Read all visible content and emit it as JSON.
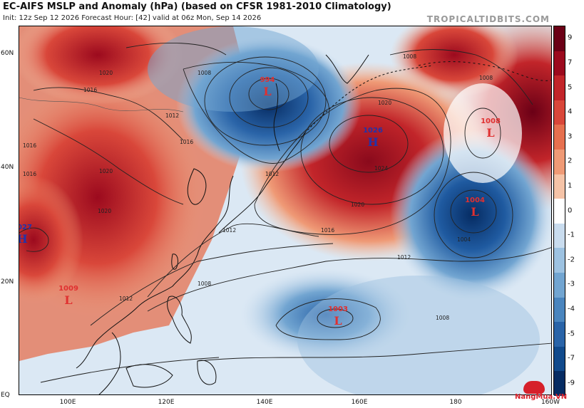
{
  "header": {
    "title": "EC-AIFS MSLP and Anomaly (hPa) (based on CFSR 1981-2010 Climatology)",
    "subtitle": "Init: 12z Sep 12 2026   Forecast Hour: [42]   valid at 06z Mon, Sep 14 2026",
    "brand": "TROPICALTIDBITS.COM"
  },
  "axes": {
    "lat_labels": [
      "60N",
      "40N",
      "20N",
      "EQ"
    ],
    "lon_labels": [
      "100E",
      "120E",
      "140E",
      "160E",
      "180",
      "160W"
    ]
  },
  "colorbar": {
    "labels": [
      "9",
      "7",
      "5",
      "4",
      "3",
      "2",
      "1",
      "0",
      "-1",
      "-2",
      "-3",
      "-4",
      "-5",
      "-7",
      "-9"
    ],
    "colors": [
      "#6b0016",
      "#9c0a1e",
      "#c2252a",
      "#d9473a",
      "#e6704f",
      "#ef9a76",
      "#f5c3a7",
      "#ffffff",
      "#c9dcee",
      "#9dc2e1",
      "#72a5d1",
      "#4a85be",
      "#2a64a8",
      "#114a8c",
      "#062c63"
    ]
  },
  "pressure_centers": [
    {
      "type": "L",
      "value": "994"
    },
    {
      "type": "H",
      "value": "1026"
    },
    {
      "type": "L",
      "value": "1008"
    },
    {
      "type": "L",
      "value": "1004"
    },
    {
      "type": "H",
      "value": "1027"
    },
    {
      "type": "L",
      "value": "1009"
    },
    {
      "type": "L",
      "value": "1003"
    }
  ],
  "isobar_labels": [
    "1008",
    "1012",
    "1016",
    "1016",
    "1020",
    "1020",
    "1024",
    "1020",
    "1016",
    "1012",
    "1008",
    "1012",
    "1008",
    "1008",
    "1004",
    "1020",
    "1016",
    "1020",
    "1008",
    "1012",
    "1016",
    "1012"
  ],
  "watermark": "NangMua.VN"
}
